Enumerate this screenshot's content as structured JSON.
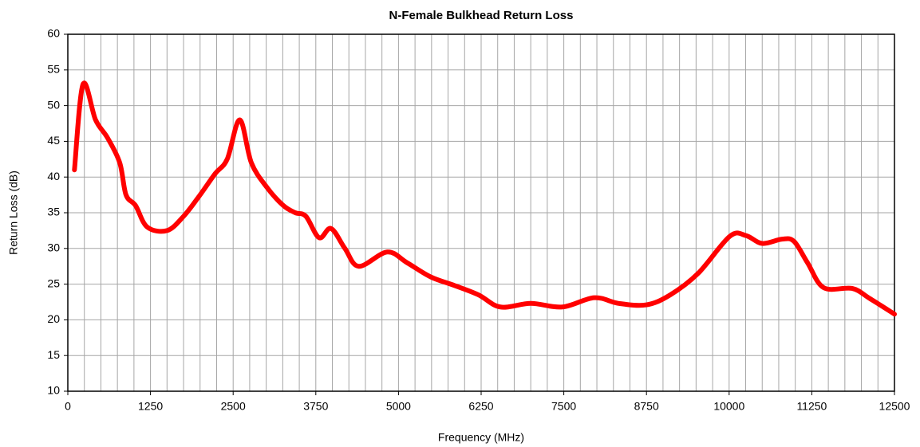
{
  "chart_data": {
    "type": "line",
    "title": "N-Female Bulkhead Return Loss",
    "x_label": "Frequency (MHz)",
    "y_label": "Return Loss (dB)",
    "xlim": [
      0,
      12500
    ],
    "ylim": [
      10,
      60
    ],
    "xticks": [
      0,
      1250,
      2500,
      3750,
      5000,
      6250,
      7500,
      8750,
      10000,
      11250,
      12500
    ],
    "x_minor_ticks": [
      0,
      250,
      500,
      750,
      1000,
      1250,
      1500,
      1750,
      2000,
      2250,
      2500,
      2750,
      3000,
      3250,
      3500,
      3750,
      4000,
      4250,
      4500,
      4750,
      5000,
      5250,
      5500,
      5750,
      6000,
      6250,
      6500,
      6750,
      7000,
      7250,
      7500,
      7750,
      8000,
      8250,
      8500,
      8750,
      9000,
      9250,
      9500,
      9750,
      10000,
      10250,
      10500,
      10750,
      11000,
      11250,
      11500,
      11750,
      12000,
      12250,
      12500
    ],
    "yticks": [
      10,
      15,
      20,
      25,
      30,
      35,
      40,
      45,
      50,
      55,
      60
    ],
    "grid": true,
    "series": [
      {
        "name": "Return Loss",
        "color": "#ff0000",
        "x": [
          100,
          230,
          420,
          600,
          785,
          880,
          1025,
          1200,
          1500,
          1750,
          2000,
          2230,
          2410,
          2600,
          2775,
          3015,
          3260,
          3440,
          3600,
          3800,
          3980,
          4190,
          4400,
          4830,
          5130,
          5490,
          5850,
          6210,
          6540,
          7000,
          7480,
          7960,
          8330,
          8750,
          9110,
          9530,
          10010,
          10255,
          10500,
          10800,
          10980,
          11185,
          11430,
          11860,
          12125,
          12500
        ],
        "values": [
          41,
          53,
          48,
          45.5,
          42,
          37.5,
          36,
          33,
          32.5,
          34.5,
          37.5,
          40.5,
          42.5,
          48,
          42,
          38.5,
          36,
          35,
          34.5,
          31.5,
          32.8,
          30,
          27.5,
          29.5,
          28,
          26,
          24.8,
          23.5,
          21.8,
          22.3,
          21.8,
          23.1,
          22.3,
          22.1,
          23.5,
          26.5,
          31.7,
          31.8,
          30.7,
          31.3,
          31,
          28,
          24.5,
          24.4,
          23,
          20.8
        ]
      }
    ]
  }
}
